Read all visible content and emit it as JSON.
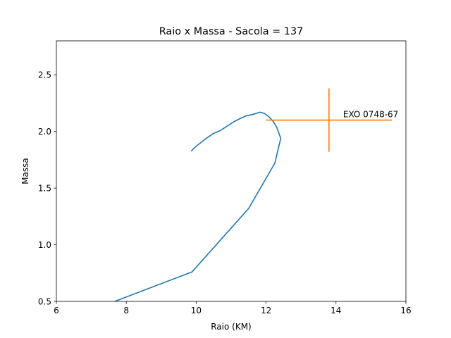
{
  "chart_data": {
    "type": "line",
    "title": "Raio x Massa - Sacola = 137",
    "xlabel": "Raio (KM)",
    "ylabel": "Massa",
    "xlim": [
      6,
      16
    ],
    "ylim": [
      0.5,
      2.8
    ],
    "xticks": [
      6,
      8,
      10,
      12,
      14,
      16
    ],
    "xtick_labels": [
      "6",
      "8",
      "10",
      "12",
      "14",
      "16"
    ],
    "yticks": [
      0.5,
      1.0,
      1.5,
      2.0,
      2.5
    ],
    "ytick_labels": [
      "0.5",
      "1.0",
      "1.5",
      "2.0",
      "2.5"
    ],
    "grid": false,
    "series": [
      {
        "color": "#1f77b4",
        "x": [
          7.5,
          9.88,
          11.5,
          12.25,
          12.42,
          12.3,
          12.2,
          12.08,
          11.95,
          11.82,
          11.62,
          11.45,
          11.3,
          11.1,
          10.9,
          10.7,
          10.48,
          10.25,
          10.0,
          9.87
        ],
        "y": [
          0.48,
          0.76,
          1.32,
          1.72,
          1.94,
          2.04,
          2.09,
          2.13,
          2.16,
          2.17,
          2.15,
          2.14,
          2.12,
          2.09,
          2.05,
          2.01,
          1.98,
          1.93,
          1.87,
          1.83
        ]
      }
    ],
    "errorbars": [
      {
        "color": "#ff7f0e",
        "x": 13.8,
        "y": 2.1,
        "xerr": [
          1.8,
          1.8
        ],
        "yerr": [
          0.28,
          0.28
        ],
        "label": "EXO 0748-67"
      }
    ]
  }
}
